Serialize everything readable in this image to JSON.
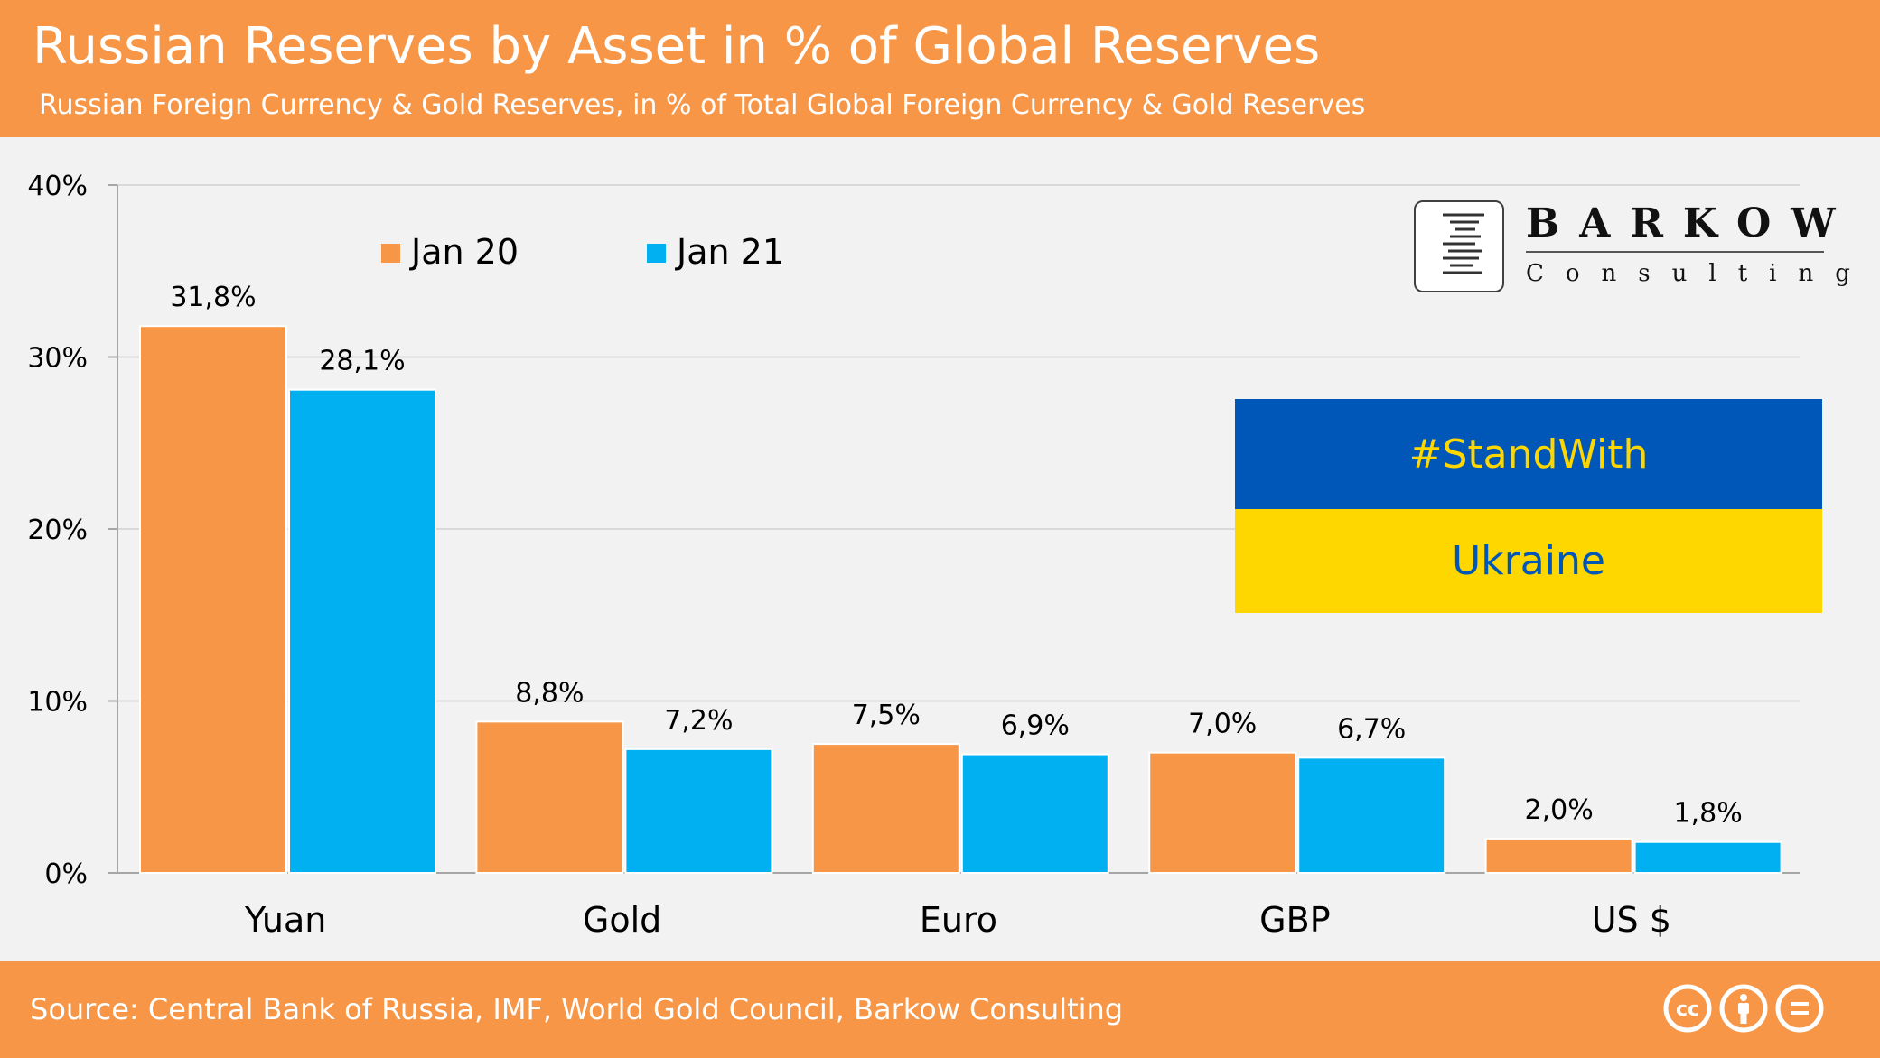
{
  "header": {
    "title": "Russian Reserves by Asset in % of Global Reserves",
    "subtitle": "Russian Foreign Currency &  Gold Reserves, in % of Total Global Foreign Currency & Gold Reserves"
  },
  "footer": {
    "source": "Source: Central Bank of Russia, IMF, World Gold Council,  Barkow Consulting",
    "license_icons": [
      "cc-icon",
      "attribution-icon",
      "no-derivatives-icon"
    ]
  },
  "logo": {
    "name": "BARKOW",
    "sub": "Consulting"
  },
  "banner": {
    "line1": "#StandWith",
    "line2": "Ukraine"
  },
  "colors": {
    "brand": "#f79646",
    "series1": "#f79646",
    "series2": "#00b0f0",
    "flag_blue": "#0057b7",
    "flag_yellow": "#ffd700"
  },
  "chart_data": {
    "type": "bar",
    "categories": [
      "Yuan",
      "Gold",
      "Euro",
      "GBP",
      "US $"
    ],
    "series": [
      {
        "name": "Jan 20",
        "values": [
          31.8,
          8.8,
          7.5,
          7.0,
          2.0
        ],
        "labels": [
          "31,8%",
          "8,8%",
          "7,5%",
          "7,0%",
          "2,0%"
        ]
      },
      {
        "name": "Jan 21",
        "values": [
          28.1,
          7.2,
          6.9,
          6.7,
          1.8
        ],
        "labels": [
          "28,1%",
          "7,2%",
          "6,9%",
          "6,7%",
          "1,8%"
        ]
      }
    ],
    "yticks": [
      "0%",
      "10%",
      "20%",
      "30%",
      "40%"
    ],
    "ylim": [
      0,
      40
    ],
    "grid": true,
    "legend": "top-left"
  }
}
